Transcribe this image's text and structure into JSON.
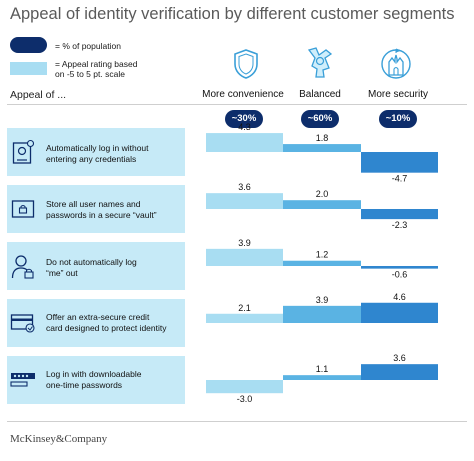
{
  "title": "Appeal of identity verification by different customer segments",
  "legend": {
    "population_label": "= % of population",
    "appeal_label_line1": "= Appeal rating based",
    "appeal_label_line2": "on -5 to 5 pt. scale"
  },
  "row_header": "Appeal of ...",
  "footer": "McKinsey&Company",
  "colors": {
    "dark_navy": "#0d2d6b",
    "light_blue": "#a8ddf2",
    "mid_blue": "#5ab3e3",
    "strong_blue": "#2f86cf",
    "row_bg": "#c6eaf7",
    "icon_blue": "#3a9fd8"
  },
  "segments": [
    {
      "label": "More convenience",
      "population": "~30%",
      "icon": "shield-icon"
    },
    {
      "label": "Balanced",
      "population": "~60%",
      "icon": "balanced-person-icon"
    },
    {
      "label": "More security",
      "population": "~10%",
      "icon": "castle-icon"
    }
  ],
  "rows": [
    {
      "line1": "Automatically log in without",
      "line2": "entering any credentials",
      "icon": "id-card-icon"
    },
    {
      "line1": "Store all user names and",
      "line2": "passwords in a secure “vault”",
      "icon": "vault-icon"
    },
    {
      "line1": "Do not automatically log",
      "line2": "“me” out",
      "icon": "person-lock-icon"
    },
    {
      "line1": "Offer an extra-secure credit",
      "line2": "card designed to protect identity",
      "icon": "credit-card-icon"
    },
    {
      "line1": "Log in with downloadable",
      "line2": "one-time passwords",
      "icon": "password-icon"
    }
  ],
  "chart_data": {
    "type": "bar",
    "title": "Appeal of identity verification by different customer segments",
    "categories": [
      "Automatically log in without entering any credentials",
      "Store all user names and passwords in a secure “vault”",
      "Do not automatically log “me” out",
      "Offer an extra-secure credit card designed to protect identity",
      "Log in with downloadable one-time passwords"
    ],
    "series": [
      {
        "name": "More convenience",
        "values": [
          4.3,
          3.6,
          3.9,
          2.1,
          -3.0
        ],
        "labels": [
          "4.3",
          "3.6",
          "3.9",
          "2.1",
          "-3.0"
        ]
      },
      {
        "name": "Balanced",
        "values": [
          1.8,
          2.0,
          1.2,
          3.9,
          1.1
        ],
        "labels": [
          "1.8",
          "2.0",
          "1.2",
          "3.9",
          "1.1"
        ]
      },
      {
        "name": "More security",
        "values": [
          -4.7,
          -2.3,
          -0.6,
          4.6,
          3.6
        ],
        "labels": [
          "-4.7",
          "-2.3",
          "-0.6",
          "4.6",
          "3.6"
        ]
      }
    ],
    "ylim": [
      -5,
      5
    ]
  }
}
